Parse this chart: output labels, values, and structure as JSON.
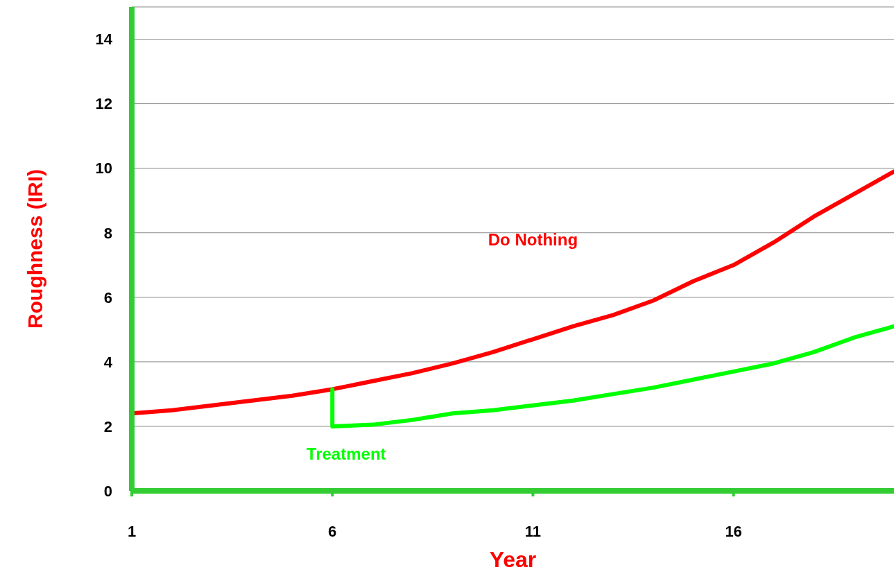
{
  "chart_data": {
    "type": "line",
    "xlabel": "Year",
    "ylabel": "Roughness (IRI)",
    "xlim": [
      1,
      20
    ],
    "xticks": [
      1,
      6,
      11,
      16
    ],
    "ylim": [
      0,
      15
    ],
    "yticks": [
      0,
      2,
      4,
      6,
      8,
      10,
      12,
      14
    ],
    "grid": "y",
    "legend": false,
    "marker": "none",
    "line_style": "solid",
    "series": [
      {
        "name": "Do Nothing",
        "color": "#ff0000",
        "x": [
          1,
          2,
          3,
          4,
          5,
          6,
          7,
          8,
          9,
          10,
          11,
          12,
          13,
          14,
          15,
          16,
          17,
          18,
          19,
          20
        ],
        "values": [
          2.4,
          2.5,
          2.65,
          2.8,
          2.95,
          3.15,
          3.4,
          3.65,
          3.95,
          4.3,
          4.7,
          5.1,
          5.45,
          5.9,
          6.5,
          7.0,
          7.7,
          8.5,
          9.2,
          9.9
        ]
      },
      {
        "name": "Treatment",
        "color": "#00ff00",
        "x": [
          6,
          6,
          7,
          8,
          9,
          10,
          11,
          12,
          13,
          14,
          15,
          16,
          17,
          18,
          19,
          20
        ],
        "values": [
          3.15,
          2.0,
          2.05,
          2.2,
          2.4,
          2.5,
          2.65,
          2.8,
          3.0,
          3.2,
          3.45,
          3.7,
          3.95,
          4.3,
          4.75,
          5.1
        ]
      }
    ]
  }
}
